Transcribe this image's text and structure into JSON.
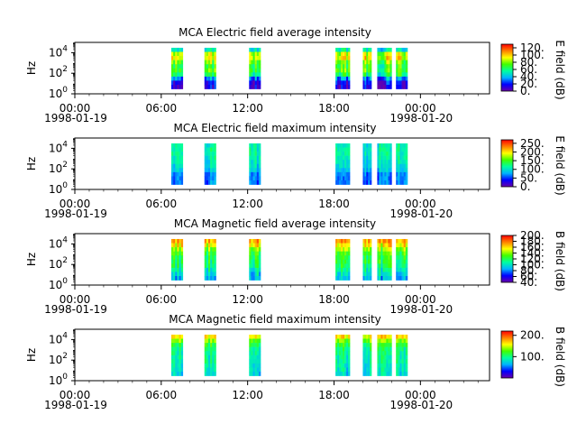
{
  "figure": {
    "background": "#ffffff"
  },
  "colormap": [
    "#6a00a8",
    "#0000ff",
    "#00b4ff",
    "#00ffa0",
    "#40ff00",
    "#ffff00",
    "#ff8000",
    "#ff0000"
  ],
  "chart_data": [
    {
      "type": "heatmap",
      "title": "MCA  Electric field average intensity",
      "ylabel": "Hz",
      "ylog": true,
      "ylim": [
        1,
        100000
      ],
      "yticks": [
        {
          "v": 1,
          "base": "10",
          "exp": "0"
        },
        {
          "v": 100,
          "base": "10",
          "exp": "2"
        },
        {
          "v": 10000,
          "base": "10",
          "exp": "4"
        }
      ],
      "xlim": [
        0,
        28.8
      ],
      "xticks": [
        {
          "h": 0,
          "time": "00:00",
          "date": "1998-01-19"
        },
        {
          "h": 6,
          "time": "06:00",
          "date": ""
        },
        {
          "h": 12,
          "time": "12:00",
          "date": ""
        },
        {
          "h": 18,
          "time": "18:00",
          "date": ""
        },
        {
          "h": 24,
          "time": "00:00",
          "date": "1998-01-20"
        }
      ],
      "colorbar": {
        "label": "E field (dB)",
        "range": [
          0,
          130
        ],
        "ticks": [
          0,
          20,
          40,
          60,
          80,
          100,
          120
        ],
        "tick_labels": [
          "0.",
          "20.",
          "40.",
          "60.",
          "80.",
          "100.",
          "120."
        ]
      },
      "intervals": [
        [
          6.7,
          7.5
        ],
        [
          9.0,
          9.8
        ],
        [
          12.1,
          12.9
        ],
        [
          18.1,
          19.1
        ],
        [
          20.0,
          20.6
        ],
        [
          21.0,
          22.0
        ],
        [
          22.3,
          23.1
        ]
      ],
      "profile": [
        0.38,
        0.66,
        0.7,
        0.6,
        0.52,
        0.56,
        0.46,
        0.24,
        0.12,
        0.08
      ],
      "variation": 0.12
    },
    {
      "type": "heatmap",
      "title": "MCA  Electric field maximum intensity",
      "ylabel": "Hz",
      "ylog": true,
      "ylim": [
        1,
        100000
      ],
      "yticks": [
        {
          "v": 1,
          "base": "10",
          "exp": "0"
        },
        {
          "v": 100,
          "base": "10",
          "exp": "2"
        },
        {
          "v": 10000,
          "base": "10",
          "exp": "4"
        }
      ],
      "xlim": [
        0,
        28.8
      ],
      "xticks": [
        {
          "h": 0,
          "time": "00:00",
          "date": "1998-01-19"
        },
        {
          "h": 6,
          "time": "06:00",
          "date": ""
        },
        {
          "h": 12,
          "time": "12:00",
          "date": ""
        },
        {
          "h": 18,
          "time": "18:00",
          "date": ""
        },
        {
          "h": 24,
          "time": "00:00",
          "date": "1998-01-20"
        }
      ],
      "colorbar": {
        "label": "E field (dB)",
        "range": [
          0,
          270
        ],
        "ticks": [
          0,
          50,
          100,
          150,
          200,
          250
        ],
        "tick_labels": [
          "0.",
          "50.",
          "100.",
          "150.",
          "200.",
          "250."
        ]
      },
      "intervals": [
        [
          6.7,
          7.5
        ],
        [
          9.0,
          9.8
        ],
        [
          12.1,
          12.9
        ],
        [
          18.1,
          19.1
        ],
        [
          20.0,
          20.6
        ],
        [
          21.0,
          22.0
        ],
        [
          22.3,
          23.1
        ]
      ],
      "profile": [
        0.38,
        0.4,
        0.4,
        0.38,
        0.36,
        0.34,
        0.3,
        0.24,
        0.22,
        0.22
      ],
      "variation": 0.08
    },
    {
      "type": "heatmap",
      "title": "MCA  Magnetic field average intensity",
      "ylabel": "Hz",
      "ylog": true,
      "ylim": [
        1,
        100000
      ],
      "yticks": [
        {
          "v": 1,
          "base": "10",
          "exp": "0"
        },
        {
          "v": 100,
          "base": "10",
          "exp": "2"
        },
        {
          "v": 10000,
          "base": "10",
          "exp": "4"
        }
      ],
      "xlim": [
        0,
        28.8
      ],
      "xticks": [
        {
          "h": 0,
          "time": "00:00",
          "date": "1998-01-19"
        },
        {
          "h": 6,
          "time": "06:00",
          "date": ""
        },
        {
          "h": 12,
          "time": "12:00",
          "date": ""
        },
        {
          "h": 18,
          "time": "18:00",
          "date": ""
        },
        {
          "h": 24,
          "time": "00:00",
          "date": "1998-01-20"
        }
      ],
      "colorbar": {
        "label": "B field (dB)",
        "range": [
          40,
          200
        ],
        "ticks": [
          40,
          60,
          80,
          100,
          120,
          140,
          160,
          180,
          200
        ],
        "tick_labels": [
          "40.",
          "60.",
          "80.",
          "100.",
          "120.",
          "140.",
          "160.",
          "180.",
          "200."
        ]
      },
      "intervals": [
        [
          6.7,
          7.5
        ],
        [
          9.0,
          9.8
        ],
        [
          12.1,
          12.9
        ],
        [
          18.1,
          19.1
        ],
        [
          20.0,
          20.6
        ],
        [
          21.0,
          22.0
        ],
        [
          22.3,
          23.1
        ]
      ],
      "profile": [
        0.8,
        0.72,
        0.62,
        0.54,
        0.5,
        0.48,
        0.46,
        0.4,
        0.34,
        0.3
      ],
      "variation": 0.1
    },
    {
      "type": "heatmap",
      "title": "MCA  Magnetic field maximum intensity",
      "ylabel": "Hz",
      "ylog": true,
      "ylim": [
        1,
        100000
      ],
      "yticks": [
        {
          "v": 1,
          "base": "10",
          "exp": "0"
        },
        {
          "v": 100,
          "base": "10",
          "exp": "2"
        },
        {
          "v": 10000,
          "base": "10",
          "exp": "4"
        }
      ],
      "xlim": [
        0,
        28.8
      ],
      "xticks": [
        {
          "h": 0,
          "time": "00:00",
          "date": "1998-01-19"
        },
        {
          "h": 6,
          "time": "06:00",
          "date": ""
        },
        {
          "h": 12,
          "time": "12:00",
          "date": ""
        },
        {
          "h": 18,
          "time": "18:00",
          "date": ""
        },
        {
          "h": 24,
          "time": "00:00",
          "date": "1998-01-20"
        }
      ],
      "colorbar": {
        "label": "B field (dB)",
        "range": [
          0,
          220
        ],
        "ticks": [
          100,
          200
        ],
        "tick_labels": [
          "100.",
          "200."
        ]
      },
      "intervals": [
        [
          6.7,
          7.5
        ],
        [
          9.0,
          9.8
        ],
        [
          12.1,
          12.9
        ],
        [
          18.1,
          19.1
        ],
        [
          20.0,
          20.6
        ],
        [
          21.0,
          22.0
        ],
        [
          22.3,
          23.1
        ]
      ],
      "profile": [
        0.75,
        0.62,
        0.52,
        0.46,
        0.44,
        0.42,
        0.42,
        0.4,
        0.38,
        0.36
      ],
      "variation": 0.08
    }
  ]
}
